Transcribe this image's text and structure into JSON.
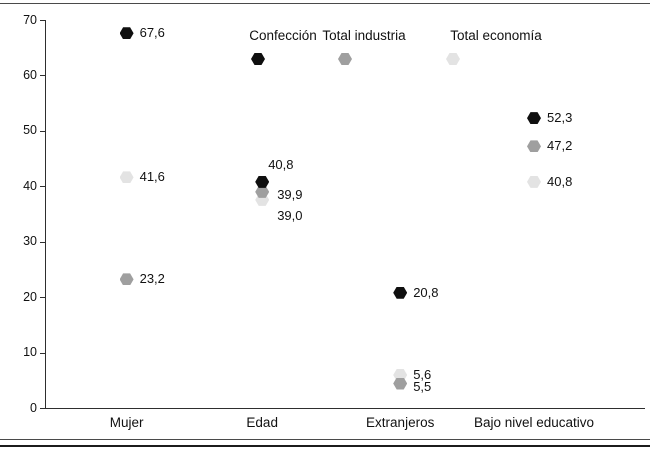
{
  "chart_data": {
    "type": "scatter",
    "title": "",
    "xlabel": "",
    "ylabel": "",
    "categories": [
      "Mujer",
      "Edad",
      "Extranjeros",
      "Bajo nivel educativo"
    ],
    "series": [
      {
        "name": "Confección",
        "color": "#0f0f0f",
        "values": [
          67.6,
          40.8,
          20.8,
          52.3
        ],
        "value_labels": [
          "67,6",
          "40,8",
          "20,8",
          "52,3"
        ]
      },
      {
        "name": "Total industria",
        "color": "#9f9f9f",
        "values": [
          23.2,
          39.9,
          5.5,
          47.2
        ],
        "value_labels": [
          "23,2",
          "39,9",
          "5,5",
          "47,2"
        ]
      },
      {
        "name": "Total economía",
        "color": "#e3e3e3",
        "values": [
          41.6,
          39.0,
          5.6,
          40.8
        ],
        "value_labels": [
          "41,6",
          "39,0",
          "5,6",
          "40,8"
        ]
      }
    ],
    "ylim": [
      0,
      70
    ],
    "yticks": [
      0,
      10,
      20,
      30,
      40,
      50,
      60,
      70
    ],
    "grid": false,
    "legend_position": "top-inside"
  },
  "frame": {
    "rule_color_thin": "#4a4a4a",
    "rule_color_thick": "#1c1c1c"
  }
}
